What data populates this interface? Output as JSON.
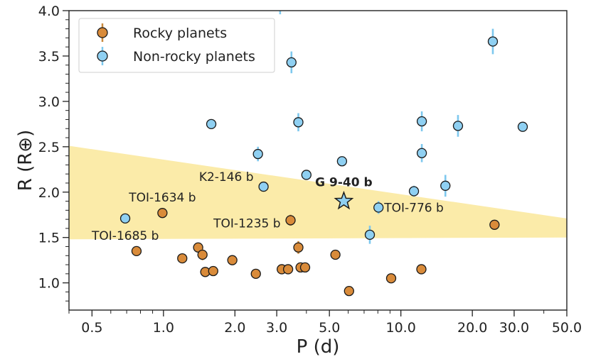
{
  "chart_data": {
    "type": "scatter",
    "xscale": "log",
    "xlim": [
      0.4,
      50
    ],
    "ylim": [
      0.7,
      4.0
    ],
    "xlabel": "P (d)",
    "ylabel": "R (R⊕)",
    "xticks": [
      0.5,
      1.0,
      2.0,
      3.0,
      5.0,
      10.0,
      20.0,
      30.0,
      50.0
    ],
    "xtick_labels": [
      "0.5",
      "1.0",
      "2.0",
      "3.0",
      "5.0",
      "10.0",
      "20.0",
      "30.0",
      "50.0"
    ],
    "yticks": [
      1.0,
      1.5,
      2.0,
      2.5,
      3.0,
      3.5,
      4.0
    ],
    "ytick_labels": [
      "1.0",
      "1.5",
      "2.0",
      "2.5",
      "3.0",
      "3.5",
      "4.0"
    ],
    "grid": false,
    "legend_position": "top-left",
    "colors": {
      "rocky_fill": "#d98b3a",
      "rocky_err": "#c98a3e",
      "nonrocky_fill": "#8fd0f2",
      "nonrocky_err": "#7ec8ee",
      "band": "#fbe9a0",
      "edge": "#1a1a1a"
    },
    "series": [
      {
        "name": "Rocky planets",
        "marker": "circle",
        "points": [
          {
            "x": 0.77,
            "y": 1.35,
            "err": 0.03
          },
          {
            "x": 0.99,
            "y": 1.77,
            "err": 0.05
          },
          {
            "x": 1.2,
            "y": 1.27,
            "err": 0.03
          },
          {
            "x": 1.4,
            "y": 1.39,
            "err": 0.05
          },
          {
            "x": 1.46,
            "y": 1.31,
            "err": 0.06
          },
          {
            "x": 1.5,
            "y": 1.12,
            "err": 0.03
          },
          {
            "x": 1.62,
            "y": 1.13,
            "err": 0.03
          },
          {
            "x": 1.95,
            "y": 1.25,
            "err": 0.03
          },
          {
            "x": 2.45,
            "y": 1.1,
            "err": 0.03
          },
          {
            "x": 3.15,
            "y": 1.15,
            "err": 0.03
          },
          {
            "x": 3.35,
            "y": 1.15,
            "err": 0.03
          },
          {
            "x": 3.43,
            "y": 1.69,
            "err": 0.06
          },
          {
            "x": 3.7,
            "y": 1.39,
            "err": 0.07
          },
          {
            "x": 3.78,
            "y": 1.17,
            "err": 0.04
          },
          {
            "x": 3.95,
            "y": 1.17,
            "err": 0.03
          },
          {
            "x": 5.3,
            "y": 1.31,
            "err": 0.05
          },
          {
            "x": 6.05,
            "y": 0.91,
            "err": 0.02
          },
          {
            "x": 9.1,
            "y": 1.05,
            "err": 0.03
          },
          {
            "x": 12.2,
            "y": 1.15,
            "err": 0.03
          },
          {
            "x": 24.8,
            "y": 1.64,
            "err": 0.03
          }
        ]
      },
      {
        "name": "Non-rocky planets",
        "marker": "circle",
        "points": [
          {
            "x": 0.69,
            "y": 1.71,
            "err": 0.03
          },
          {
            "x": 1.59,
            "y": 2.75,
            "err": 0.03
          },
          {
            "x": 2.5,
            "y": 2.42,
            "err": 0.08
          },
          {
            "x": 2.64,
            "y": 2.06,
            "err": 0.04
          },
          {
            "x": 3.46,
            "y": 3.43,
            "err": 0.12
          },
          {
            "x": 3.7,
            "y": 2.77,
            "err": 0.1
          },
          {
            "x": 4.0,
            "y": 2.19,
            "err": 0.05
          },
          {
            "x": 5.65,
            "y": 2.34,
            "err": 0.05
          },
          {
            "x": 7.4,
            "y": 1.53,
            "err": 0.1
          },
          {
            "x": 8.05,
            "y": 1.83,
            "err": 0.07
          },
          {
            "x": 11.35,
            "y": 2.01,
            "err": 0.06
          },
          {
            "x": 12.25,
            "y": 2.78,
            "err": 0.11
          },
          {
            "x": 12.25,
            "y": 2.43,
            "err": 0.1
          },
          {
            "x": 15.4,
            "y": 2.07,
            "err": 0.12
          },
          {
            "x": 17.4,
            "y": 2.73,
            "err": 0.12
          },
          {
            "x": 24.4,
            "y": 3.66,
            "err": 0.14
          },
          {
            "x": 32.6,
            "y": 2.72,
            "err": 0.05
          },
          {
            "x": 3.1,
            "y": 4.08,
            "err": 0.12
          }
        ]
      }
    ],
    "highlight": {
      "label": "G 9-40 b",
      "x": 5.75,
      "y": 1.9,
      "marker": "star"
    },
    "band": {
      "upper": [
        [
          0.4,
          2.51
        ],
        [
          50,
          1.71
        ]
      ],
      "lower": [
        [
          0.4,
          1.48
        ],
        [
          50,
          1.5
        ]
      ]
    },
    "annotations": [
      {
        "text": "TOI-1685 b",
        "x": 0.69,
        "y": 1.71,
        "anchor": "below-left"
      },
      {
        "text": "TOI-1634 b",
        "x": 0.99,
        "y": 1.77,
        "anchor": "above"
      },
      {
        "text": "K2-146 b",
        "x": 2.64,
        "y": 2.06,
        "anchor": "above-left"
      },
      {
        "text": "TOI-1235 b",
        "x": 3.43,
        "y": 1.69,
        "anchor": "left"
      },
      {
        "text": "TOI-776 b",
        "x": 8.05,
        "y": 1.83,
        "anchor": "right"
      },
      {
        "text": "G 9-40 b",
        "x": 5.75,
        "y": 1.9,
        "anchor": "above",
        "bold": true
      }
    ]
  }
}
